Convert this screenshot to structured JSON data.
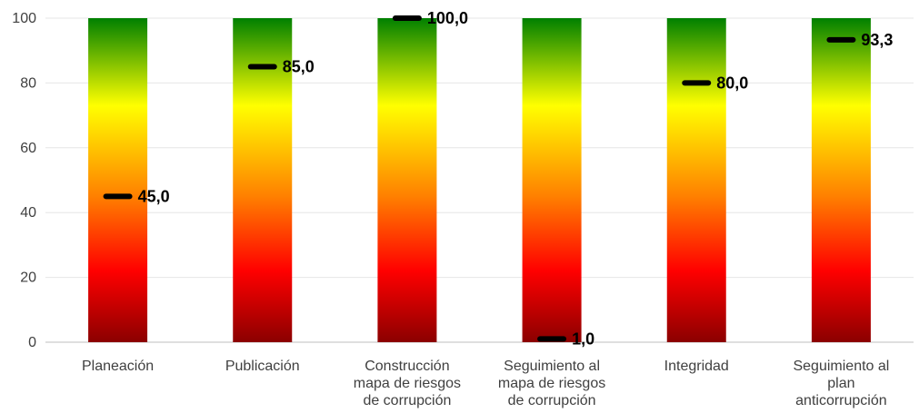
{
  "chart_data": {
    "type": "bar",
    "categories": [
      [
        "Planeación"
      ],
      [
        "Publicación"
      ],
      [
        "Construcción",
        "mapa de riesgos",
        "de corrupción"
      ],
      [
        "Seguimiento al",
        "mapa de riesgos",
        "de corrupción"
      ],
      [
        "Integridad"
      ],
      [
        "Seguimiento al",
        "plan",
        "anticorrupción"
      ]
    ],
    "values": [
      45.0,
      85.0,
      100.0,
      1.0,
      80.0,
      93.3
    ],
    "value_labels": [
      "45,0",
      "85,0",
      "100,0",
      "1,0",
      "80,0",
      "93,3"
    ],
    "bar_range": 100,
    "ylim": [
      0,
      100
    ],
    "yticks": [
      "0",
      "20",
      "40",
      "60",
      "80",
      "100"
    ],
    "grid": true,
    "legend": "none",
    "title": "",
    "xlabel": "",
    "ylabel": "",
    "colors": {
      "gradient": [
        "#008000",
        "#FFFF00",
        "#FF8000",
        "#FF0000",
        "#8B0000"
      ],
      "marker": "#000000",
      "grid": "#E6E6E6",
      "axis": "#BFBFBF"
    }
  }
}
